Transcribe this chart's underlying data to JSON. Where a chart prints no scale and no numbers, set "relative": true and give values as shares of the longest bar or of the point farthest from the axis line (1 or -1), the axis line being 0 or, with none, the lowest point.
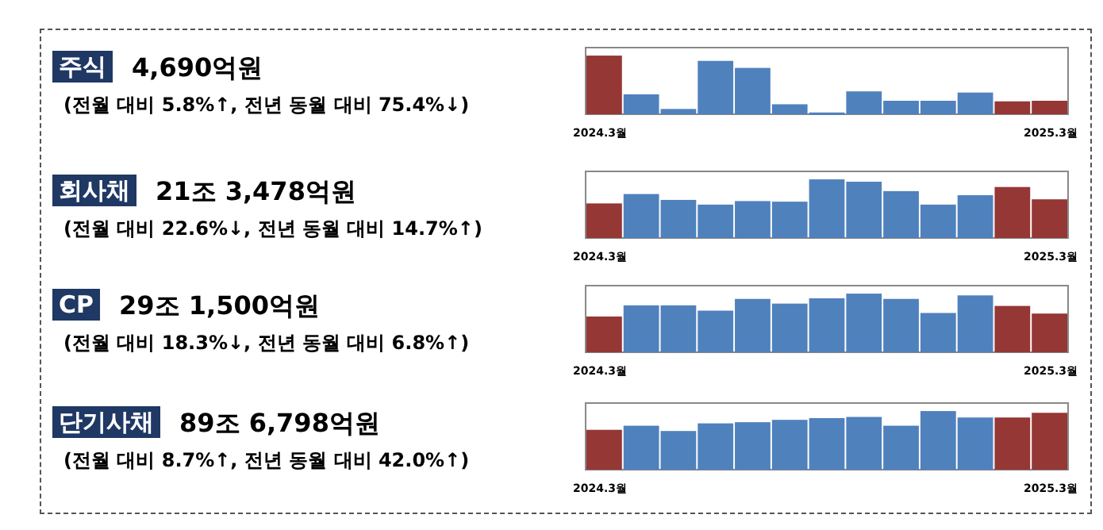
{
  "chart_data": [
    {
      "type": "bar",
      "annotations": [
        "주식",
        "4,690억원",
        "(전월 대비 5.8%↑, 전년 동월 대비 75.4%↓)"
      ],
      "relative": true,
      "categories": [
        "2024.3월",
        null,
        null,
        null,
        null,
        null,
        null,
        null,
        null,
        null,
        null,
        null,
        "2025.3월"
      ],
      "values": [
        1,
        0.34,
        0.09,
        0.91,
        0.79,
        0.17,
        0.03,
        0.39,
        0.23,
        0.23,
        0.37,
        0.22,
        0.23
      ],
      "colors": [
        "#953735",
        "#4f81bd",
        "#4f81bd",
        "#4f81bd",
        "#4f81bd",
        "#4f81bd",
        "#4f81bd",
        "#4f81bd",
        "#4f81bd",
        "#4f81bd",
        "#4f81bd",
        "#953735",
        "#953735"
      ]
    },
    {
      "type": "bar",
      "annotations": [
        "회사채",
        "21조 3,478억원",
        "(전월 대비 22.6%↓, 전년 동월 대비 14.7%↑)"
      ],
      "relative": true,
      "categories": [
        "2024.3월",
        null,
        null,
        null,
        null,
        null,
        null,
        null,
        null,
        null,
        null,
        null,
        "2025.3월"
      ],
      "values": [
        0.59,
        0.75,
        0.65,
        0.57,
        0.63,
        0.62,
        1,
        0.96,
        0.8,
        0.57,
        0.73,
        0.87,
        0.66
      ],
      "colors": [
        "#953735",
        "#4f81bd",
        "#4f81bd",
        "#4f81bd",
        "#4f81bd",
        "#4f81bd",
        "#4f81bd",
        "#4f81bd",
        "#4f81bd",
        "#4f81bd",
        "#4f81bd",
        "#953735",
        "#953735"
      ]
    },
    {
      "type": "bar",
      "annotations": [
        "CP",
        "29조 1,500억원",
        "(전월 대비 18.3%↓, 전년 동월 대비 6.8%↑)"
      ],
      "relative": true,
      "categories": [
        "2024.3월",
        null,
        null,
        null,
        null,
        null,
        null,
        null,
        null,
        null,
        null,
        null,
        "2025.3월"
      ],
      "values": [
        0.61,
        0.8,
        0.8,
        0.71,
        0.91,
        0.83,
        0.92,
        1,
        0.91,
        0.67,
        0.97,
        0.79,
        0.66
      ],
      "colors": [
        "#953735",
        "#4f81bd",
        "#4f81bd",
        "#4f81bd",
        "#4f81bd",
        "#4f81bd",
        "#4f81bd",
        "#4f81bd",
        "#4f81bd",
        "#4f81bd",
        "#4f81bd",
        "#953735",
        "#953735"
      ]
    },
    {
      "type": "bar",
      "annotations": [
        "단기사채",
        "89조 6,798억원",
        "(전월 대비 8.7%↑, 전년 동월 대비 42.0%↑)"
      ],
      "relative": true,
      "categories": [
        "2024.3월",
        null,
        null,
        null,
        null,
        null,
        null,
        null,
        null,
        null,
        null,
        null,
        "2025.3월"
      ],
      "values": [
        0.68,
        0.75,
        0.66,
        0.79,
        0.81,
        0.85,
        0.88,
        0.9,
        0.75,
        1,
        0.89,
        0.89,
        0.97
      ],
      "colors": [
        "#953735",
        "#4f81bd",
        "#4f81bd",
        "#4f81bd",
        "#4f81bd",
        "#4f81bd",
        "#4f81bd",
        "#4f81bd",
        "#4f81bd",
        "#4f81bd",
        "#4f81bd",
        "#953735",
        "#953735"
      ]
    }
  ]
}
